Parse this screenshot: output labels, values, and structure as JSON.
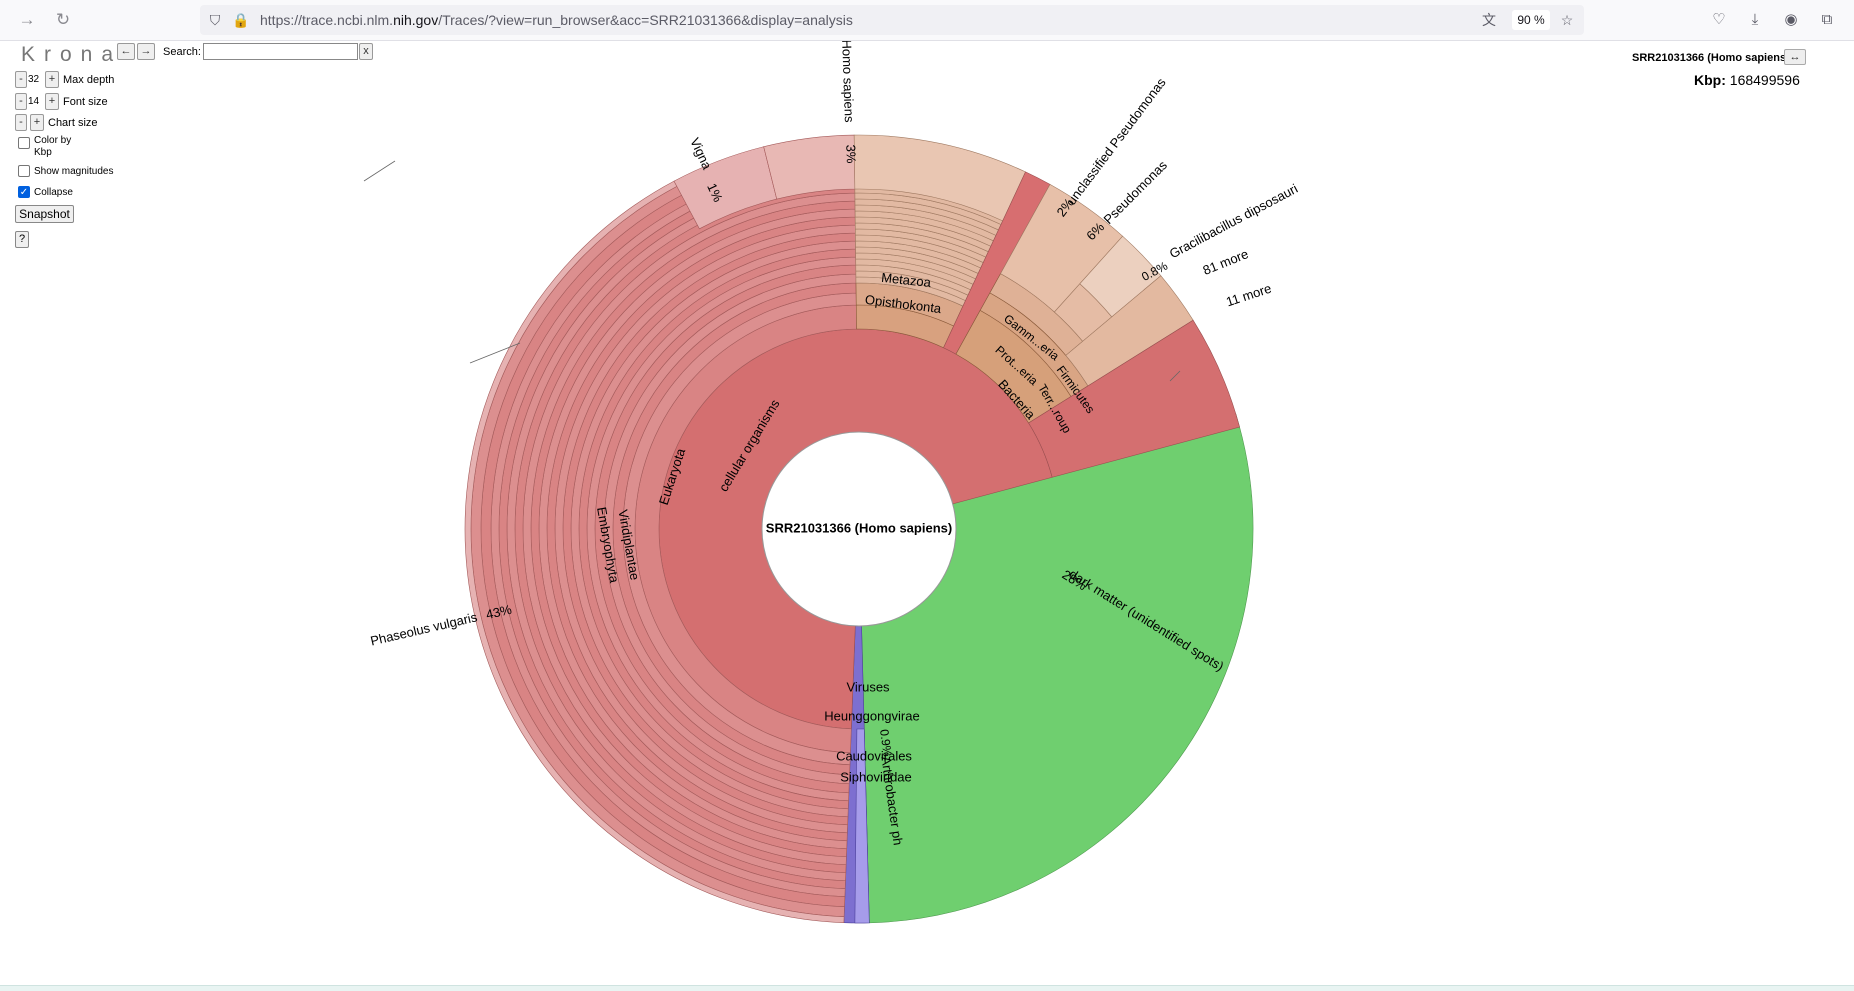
{
  "browser": {
    "url_prefix": "https://trace.ncbi.nlm.",
    "url_domain": "nih.gov",
    "url_suffix": "/Traces/?view=run_browser&acc=SRR21031366&display=analysis",
    "zoom": "90 %"
  },
  "krona": {
    "logo": "Krona",
    "back": "←",
    "forward": "→",
    "search_label": "Search:",
    "search_value": "",
    "clear_label": "x",
    "max_depth_value": "32",
    "max_depth_label": "Max depth",
    "font_size_value": "14",
    "font_size_label": "Font size",
    "chart_size_label": "Chart size",
    "minus": "-",
    "plus": "+",
    "color_by_label": "Color by",
    "color_by_unit": "Kbp",
    "show_magnitudes_label": "Show magnitudes",
    "collapse_label": "Collapse",
    "collapse_checked": true,
    "snapshot_label": "Snapshot",
    "help_label": "?",
    "title": "SRR21031366 (Homo sapiens)",
    "expand_label": "↔",
    "kbp_label": "Kbp:",
    "kbp_value": "168499596"
  },
  "chart_data": {
    "type": "sunburst",
    "center_label": "SRR21031366 (Homo sapiens)",
    "total_kbp": 168499596,
    "colors": {
      "eukaryota": "#d46f70",
      "metazoa": "#d8a17f",
      "bacteria": "#d6a07a",
      "viruses": "#7d6fd0",
      "dark_matter": "#6fcf6f",
      "pseudomonas": "#e7c0a9"
    },
    "labels": [
      "cellular organisms",
      "Eukaryota",
      "Viridiplantae",
      "Embryophyta",
      "Metazoa",
      "Opisthokonta",
      "Bacteria",
      "Prot...eria",
      "Terr...roup",
      "Gamm...eria",
      "Firmicutes",
      "Viruses",
      "Heunggongvirae",
      "Caudovirales",
      "Siphoviridae"
    ],
    "outer_labels": [
      {
        "name": "Phaseolus vulgaris",
        "percent": "43%"
      },
      {
        "name": "Vigna",
        "percent": "1%"
      },
      {
        "name": "Homo sapiens",
        "percent": "3%"
      },
      {
        "name": "unclassified Pseudomonas",
        "percent": "2%"
      },
      {
        "name": "Pseudomonas",
        "percent": "6%"
      },
      {
        "name": "Gracilibacillus dipsosauri",
        "percent": "0.8%"
      },
      {
        "name": "81 more",
        "percent": ""
      },
      {
        "name": "11 more",
        "percent": ""
      },
      {
        "name": "dark matter (unidentified spots)",
        "percent": "28%"
      },
      {
        "name": "Arthrobacter ph",
        "percent": "0.9%"
      }
    ]
  }
}
